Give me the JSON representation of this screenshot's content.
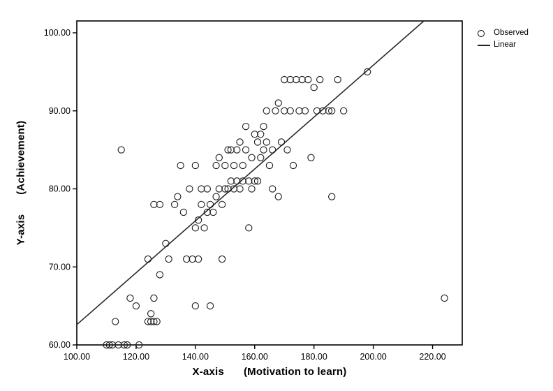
{
  "chart_data": {
    "type": "scatter",
    "title": "",
    "xlabel": {
      "axis": "X-axis",
      "desc": "(Motivation to learn)"
    },
    "ylabel": {
      "axis": "Y-axis",
      "desc": "(Achievement)"
    },
    "xlim": [
      100,
      230
    ],
    "ylim": [
      60,
      100
    ],
    "grid": false,
    "legend_position": "top-right-outside",
    "x_ticks": {
      "values": [
        100,
        120,
        140,
        160,
        180,
        200,
        220
      ],
      "labels": [
        "100.00",
        "120.00",
        "140.00",
        "160.00",
        "180.00",
        "200.00",
        "220.00"
      ]
    },
    "y_ticks": {
      "values": [
        60,
        70,
        80,
        90,
        100
      ],
      "labels": [
        "60.00",
        "70.00",
        "80.00",
        "90.00",
        "100.00"
      ]
    },
    "legend": [
      {
        "label": "Observed",
        "marker": "open-circle"
      },
      {
        "label": "Linear",
        "marker": "line"
      }
    ],
    "series": [
      {
        "name": "Observed",
        "type": "scatter",
        "marker": "open-circle",
        "points": [
          [
            110,
            60
          ],
          [
            111,
            60
          ],
          [
            112,
            60
          ],
          [
            113,
            63
          ],
          [
            114,
            60
          ],
          [
            116,
            60
          ],
          [
            117,
            60
          ],
          [
            118,
            66
          ],
          [
            120,
            65
          ],
          [
            121,
            60
          ],
          [
            115,
            85
          ],
          [
            124,
            63
          ],
          [
            125,
            63
          ],
          [
            125,
            64
          ],
          [
            126,
            63
          ],
          [
            126,
            66
          ],
          [
            127,
            63
          ],
          [
            128,
            69
          ],
          [
            124,
            71
          ],
          [
            126,
            78
          ],
          [
            128,
            78
          ],
          [
            130,
            73
          ],
          [
            131,
            71
          ],
          [
            133,
            78
          ],
          [
            134,
            79
          ],
          [
            135,
            83
          ],
          [
            136,
            77
          ],
          [
            137,
            71
          ],
          [
            139,
            71
          ],
          [
            140,
            65
          ],
          [
            141,
            71
          ],
          [
            140,
            75
          ],
          [
            141,
            76
          ],
          [
            142,
            78
          ],
          [
            143,
            75
          ],
          [
            144,
            77
          ],
          [
            145,
            78
          ],
          [
            138,
            80
          ],
          [
            142,
            80
          ],
          [
            144,
            80
          ],
          [
            140,
            83
          ],
          [
            145,
            65
          ],
          [
            146,
            77
          ],
          [
            147,
            79
          ],
          [
            147,
            83
          ],
          [
            148,
            80
          ],
          [
            148,
            84
          ],
          [
            149,
            78
          ],
          [
            149,
            71
          ],
          [
            150,
            80
          ],
          [
            150,
            83
          ],
          [
            151,
            85
          ],
          [
            151,
            80
          ],
          [
            152,
            81
          ],
          [
            152,
            85
          ],
          [
            153,
            80
          ],
          [
            153,
            83
          ],
          [
            154,
            81
          ],
          [
            154,
            85
          ],
          [
            155,
            80
          ],
          [
            155,
            86
          ],
          [
            156,
            81
          ],
          [
            156,
            83
          ],
          [
            157,
            85
          ],
          [
            157,
            88
          ],
          [
            158,
            81
          ],
          [
            158,
            75
          ],
          [
            159,
            80
          ],
          [
            159,
            84
          ],
          [
            160,
            81
          ],
          [
            160,
            87
          ],
          [
            161,
            86
          ],
          [
            161,
            81
          ],
          [
            162,
            84
          ],
          [
            162,
            87
          ],
          [
            163,
            85
          ],
          [
            163,
            88
          ],
          [
            164,
            86
          ],
          [
            164,
            90
          ],
          [
            165,
            83
          ],
          [
            166,
            85
          ],
          [
            166,
            80
          ],
          [
            167,
            90
          ],
          [
            168,
            91
          ],
          [
            168,
            79
          ],
          [
            169,
            86
          ],
          [
            170,
            90
          ],
          [
            170,
            94
          ],
          [
            171,
            85
          ],
          [
            172,
            94
          ],
          [
            172,
            90
          ],
          [
            173,
            83
          ],
          [
            174,
            94
          ],
          [
            175,
            90
          ],
          [
            176,
            94
          ],
          [
            177,
            90
          ],
          [
            178,
            94
          ],
          [
            179,
            84
          ],
          [
            180,
            93
          ],
          [
            181,
            90
          ],
          [
            182,
            94
          ],
          [
            183,
            90
          ],
          [
            185,
            90
          ],
          [
            186,
            90
          ],
          [
            186,
            79
          ],
          [
            188,
            94
          ],
          [
            190,
            90
          ],
          [
            198,
            95
          ],
          [
            224,
            66
          ]
        ]
      },
      {
        "name": "Linear",
        "type": "line",
        "x1": 100,
        "y1": 62.6,
        "x2": 217,
        "y2": 101.5
      }
    ],
    "colors": {
      "marker_stroke": "#1a1a1a",
      "line": "#2a2a2a",
      "frame": "#000000"
    }
  }
}
